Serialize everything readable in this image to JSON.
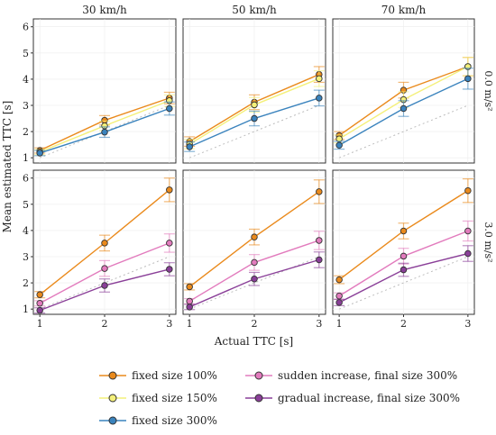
{
  "chart_data": {
    "type": "line",
    "xlabel": "Actual TTC [s]",
    "ylabel": "Mean estimated TTC [s]",
    "x": [
      1,
      2,
      3
    ],
    "xlim": [
      0.9,
      3.1
    ],
    "ylim": [
      0.8,
      6.3
    ],
    "xticks": [
      "1",
      "2",
      "3"
    ],
    "yticks": [
      "1",
      "2",
      "3",
      "4",
      "5",
      "6"
    ],
    "columns": [
      "30 km/h",
      "50 km/h",
      "70 km/h"
    ],
    "rows": [
      "0.0 m/s²",
      "3.0 m/s²"
    ],
    "reference_line": "y = x (dotted)",
    "legend_placement": "bottom",
    "series_styles": [
      {
        "name": "fixed size 100%",
        "color": "#ea8a1c"
      },
      {
        "name": "fixed size 150%",
        "color": "#f4f07a"
      },
      {
        "name": "fixed size 300%",
        "color": "#3a83bd"
      },
      {
        "name": "sudden increase, final size 300%",
        "color": "#e27bbd"
      },
      {
        "name": "gradual increase, final size 300%",
        "color": "#8a3f98"
      }
    ],
    "panels": [
      {
        "row": 0,
        "col": 0,
        "series": [
          {
            "name": "fixed size 100%",
            "values": [
              1.28,
              2.43,
              3.28
            ],
            "err": [
              0.1,
              0.18,
              0.22
            ]
          },
          {
            "name": "fixed size 150%",
            "values": [
              1.22,
              2.22,
              3.18
            ],
            "err": [
              0.1,
              0.18,
              0.22
            ]
          },
          {
            "name": "fixed size 300%",
            "values": [
              1.18,
              1.98,
              2.88
            ],
            "err": [
              0.1,
              0.2,
              0.25
            ]
          }
        ]
      },
      {
        "row": 0,
        "col": 1,
        "series": [
          {
            "name": "fixed size 100%",
            "values": [
              1.62,
              3.12,
              4.18
            ],
            "err": [
              0.18,
              0.28,
              0.3
            ]
          },
          {
            "name": "fixed size 150%",
            "values": [
              1.52,
              3.02,
              4.02
            ],
            "err": [
              0.18,
              0.28,
              0.3
            ]
          },
          {
            "name": "fixed size 300%",
            "values": [
              1.42,
              2.5,
              3.28
            ],
            "err": [
              0.18,
              0.28,
              0.3
            ]
          }
        ]
      },
      {
        "row": 0,
        "col": 2,
        "series": [
          {
            "name": "fixed size 100%",
            "values": [
              1.85,
              3.58,
              4.48
            ],
            "err": [
              0.15,
              0.3,
              0.35
            ]
          },
          {
            "name": "fixed size 150%",
            "values": [
              1.72,
              3.22,
              4.48
            ],
            "err": [
              0.15,
              0.3,
              0.35
            ]
          },
          {
            "name": "fixed size 300%",
            "values": [
              1.48,
              2.88,
              4.02
            ],
            "err": [
              0.15,
              0.3,
              0.4
            ]
          }
        ]
      },
      {
        "row": 1,
        "col": 0,
        "series": [
          {
            "name": "fixed size 100%",
            "values": [
              1.55,
              3.52,
              5.55
            ],
            "err": [
              0.12,
              0.3,
              0.45
            ]
          },
          {
            "name": "sudden increase, final size 300%",
            "values": [
              1.22,
              2.55,
              3.52
            ],
            "err": [
              0.1,
              0.3,
              0.35
            ]
          },
          {
            "name": "gradual increase, final size 300%",
            "values": [
              0.95,
              1.9,
              2.52
            ],
            "err": [
              0.1,
              0.25,
              0.25
            ]
          }
        ]
      },
      {
        "row": 1,
        "col": 1,
        "series": [
          {
            "name": "fixed size 100%",
            "values": [
              1.85,
              3.75,
              5.48
            ],
            "err": [
              0.12,
              0.3,
              0.45
            ]
          },
          {
            "name": "sudden increase, final size 300%",
            "values": [
              1.3,
              2.78,
              3.62
            ],
            "err": [
              0.1,
              0.3,
              0.35
            ]
          },
          {
            "name": "gradual increase, final size 300%",
            "values": [
              1.08,
              2.15,
              2.88
            ],
            "err": [
              0.1,
              0.25,
              0.3
            ]
          }
        ]
      },
      {
        "row": 1,
        "col": 2,
        "series": [
          {
            "name": "fixed size 100%",
            "values": [
              2.12,
              3.98,
              5.52
            ],
            "err": [
              0.15,
              0.3,
              0.45
            ]
          },
          {
            "name": "sudden increase, final size 300%",
            "values": [
              1.5,
              3.02,
              3.98
            ],
            "err": [
              0.12,
              0.3,
              0.38
            ]
          },
          {
            "name": "gradual increase, final size 300%",
            "values": [
              1.25,
              2.5,
              3.12
            ],
            "err": [
              0.12,
              0.25,
              0.3
            ]
          }
        ]
      }
    ]
  },
  "legend": {
    "items": [
      {
        "label": "fixed size 100%",
        "color": "#ea8a1c"
      },
      {
        "label": "fixed size 150%",
        "color": "#f4f07a"
      },
      {
        "label": "fixed size 300%",
        "color": "#3a83bd"
      },
      {
        "label": "sudden increase, final size 300%",
        "color": "#e27bbd"
      },
      {
        "label": "gradual increase, final size 300%",
        "color": "#8a3f98"
      }
    ]
  }
}
